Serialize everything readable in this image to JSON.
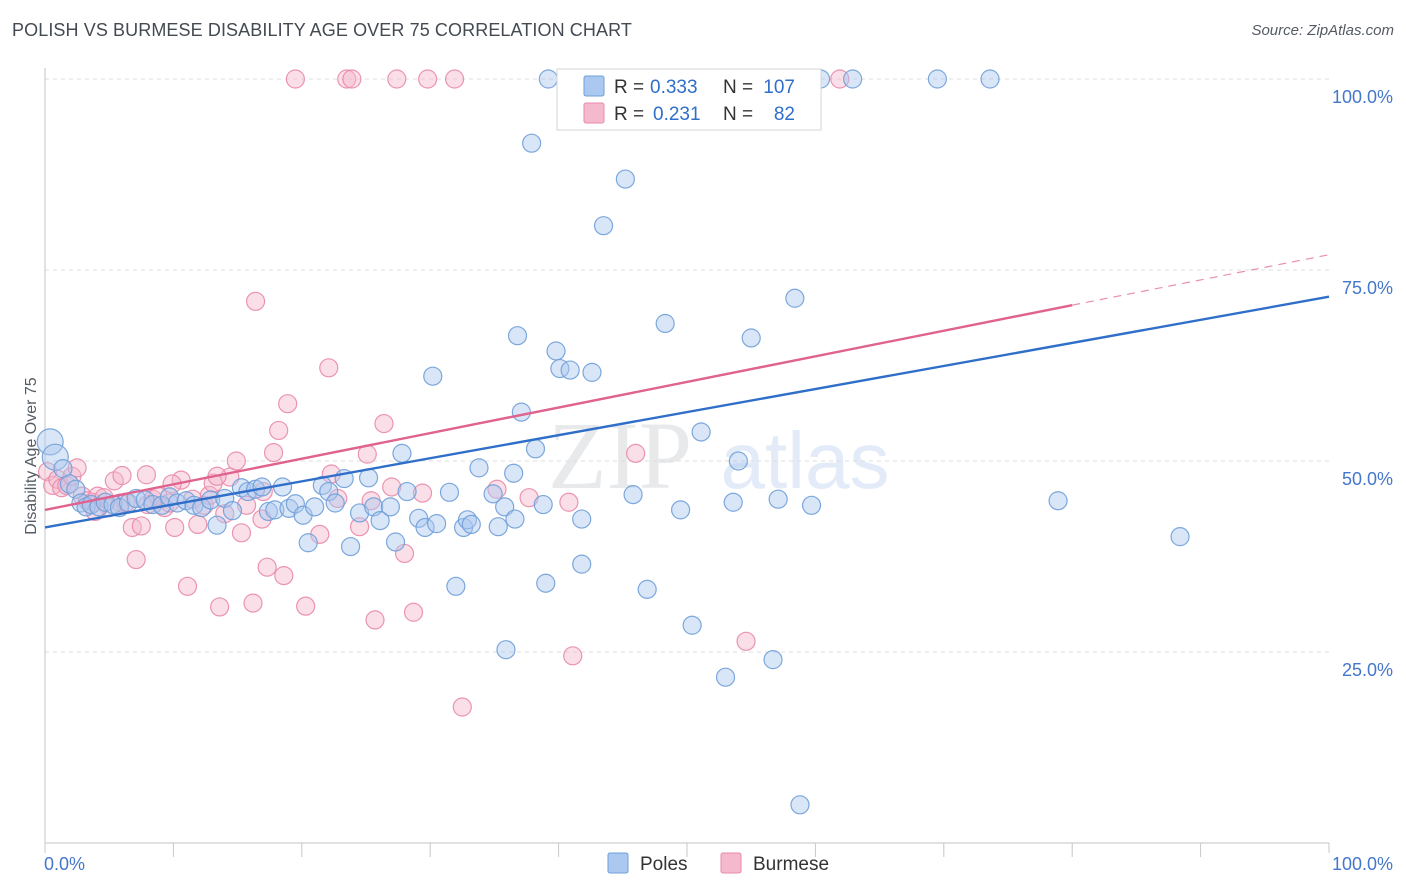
{
  "header": {
    "title": "POLISH VS BURMESE DISABILITY AGE OVER 75 CORRELATION CHART",
    "source": "Source: ZipAtlas.com"
  },
  "watermark": {
    "zip": "ZIP",
    "atlas": "atlas"
  },
  "legend_top": [
    {
      "r_label": "R =",
      "r_value": "0.333",
      "n_label": "N =",
      "n_value": "107"
    },
    {
      "r_label": "R =",
      "r_value": "0.231",
      "n_label": "N =",
      "n_value": "82"
    }
  ],
  "legend_bottom": [
    {
      "label": "Poles"
    },
    {
      "label": "Burmese"
    }
  ],
  "colors": {
    "poles_fill": "#aac8f0",
    "poles_stroke": "#6f9fd8",
    "poles_line": "#2f6fc9",
    "burmese_fill": "#f5b9cd",
    "burmese_stroke": "#e98aaa",
    "burmese_line": "#e0628e",
    "tick_label": "#4477cc",
    "grid": "#dddddd"
  },
  "chart_data": {
    "type": "scatter",
    "title": "POLISH VS BURMESE DISABILITY AGE OVER 75 CORRELATION CHART",
    "ylabel": "Disability Age Over 75",
    "xlabel": "",
    "xlim": [
      0,
      100
    ],
    "ylim": [
      0,
      100
    ],
    "x_tick_labels": [
      "0.0%",
      "100.0%"
    ],
    "y_ticks": [
      {
        "value": 25,
        "label": "25.0%"
      },
      {
        "value": 50,
        "label": "50.0%"
      },
      {
        "value": 75,
        "label": "75.0%"
      },
      {
        "value": 100,
        "label": "100.0%"
      }
    ],
    "grid": true,
    "legend_placement": "top-center",
    "series": [
      {
        "name": "Poles",
        "r": 0.333,
        "n": 107,
        "trend": {
          "x0": 0,
          "y0": 41.3,
          "x1": 100,
          "y1": 71.5
        },
        "points": [
          [
            0.4,
            52.5
          ],
          [
            0.8,
            50.5
          ],
          [
            1.4,
            49.0
          ],
          [
            1.9,
            47.0
          ],
          [
            2.4,
            46.3
          ],
          [
            2.8,
            44.5
          ],
          [
            3.2,
            44.0
          ],
          [
            3.6,
            44.3
          ],
          [
            4.2,
            44.0
          ],
          [
            4.7,
            44.6
          ],
          [
            5.3,
            44.3
          ],
          [
            5.8,
            43.9
          ],
          [
            6.5,
            44.5
          ],
          [
            7.1,
            45.1
          ],
          [
            7.8,
            44.9
          ],
          [
            8.4,
            44.3
          ],
          [
            9.1,
            44.2
          ],
          [
            9.7,
            45.3
          ],
          [
            10.3,
            44.5
          ],
          [
            11.0,
            44.8
          ],
          [
            11.6,
            44.2
          ],
          [
            12.2,
            43.9
          ],
          [
            12.9,
            44.9
          ],
          [
            13.4,
            41.6
          ],
          [
            14.0,
            45.1
          ],
          [
            14.6,
            43.5
          ],
          [
            15.3,
            46.5
          ],
          [
            15.8,
            46.0
          ],
          [
            16.4,
            46.3
          ],
          [
            16.9,
            46.6
          ],
          [
            17.4,
            43.4
          ],
          [
            17.9,
            43.6
          ],
          [
            18.5,
            46.6
          ],
          [
            19.0,
            43.8
          ],
          [
            19.5,
            44.4
          ],
          [
            20.1,
            42.9
          ],
          [
            20.5,
            39.3
          ],
          [
            21.0,
            44.0
          ],
          [
            21.6,
            46.8
          ],
          [
            22.1,
            46.0
          ],
          [
            22.6,
            44.5
          ],
          [
            23.3,
            47.7
          ],
          [
            23.8,
            38.8
          ],
          [
            24.5,
            43.2
          ],
          [
            25.2,
            47.8
          ],
          [
            25.6,
            44.0
          ],
          [
            26.1,
            42.2
          ],
          [
            26.9,
            44.0
          ],
          [
            27.3,
            39.4
          ],
          [
            27.8,
            51.0
          ],
          [
            28.2,
            46.0
          ],
          [
            29.1,
            42.5
          ],
          [
            29.6,
            41.3
          ],
          [
            30.2,
            61.1
          ],
          [
            30.5,
            41.8
          ],
          [
            31.5,
            45.9
          ],
          [
            32.0,
            33.6
          ],
          [
            32.6,
            41.3
          ],
          [
            32.9,
            42.3
          ],
          [
            33.2,
            41.7
          ],
          [
            33.8,
            49.1
          ],
          [
            34.9,
            45.7
          ],
          [
            35.3,
            41.4
          ],
          [
            35.8,
            44.0
          ],
          [
            35.9,
            25.3
          ],
          [
            36.5,
            48.4
          ],
          [
            36.6,
            42.4
          ],
          [
            36.8,
            66.4
          ],
          [
            37.1,
            56.4
          ],
          [
            37.9,
            91.6
          ],
          [
            38.2,
            51.6
          ],
          [
            38.8,
            44.3
          ],
          [
            39.0,
            34.0
          ],
          [
            39.2,
            100.0
          ],
          [
            39.8,
            64.4
          ],
          [
            40.1,
            62.1
          ],
          [
            40.9,
            61.9
          ],
          [
            41.2,
            100.0
          ],
          [
            41.8,
            42.4
          ],
          [
            41.8,
            36.5
          ],
          [
            42.6,
            61.6
          ],
          [
            43.5,
            80.8
          ],
          [
            44.7,
            100.0
          ],
          [
            45.2,
            86.9
          ],
          [
            45.8,
            45.6
          ],
          [
            46.4,
            100.0
          ],
          [
            46.9,
            33.2
          ],
          [
            48.3,
            68.0
          ],
          [
            49.5,
            43.6
          ],
          [
            50.4,
            28.5
          ],
          [
            51.1,
            53.8
          ],
          [
            51.3,
            100.0
          ],
          [
            53.0,
            21.7
          ],
          [
            53.6,
            44.6
          ],
          [
            54.0,
            50.0
          ],
          [
            55.0,
            66.1
          ],
          [
            56.7,
            24.0
          ],
          [
            58.4,
            71.3
          ],
          [
            58.8,
            5.0
          ],
          [
            60.4,
            100.0
          ],
          [
            62.9,
            100.0
          ],
          [
            69.5,
            100.0
          ],
          [
            73.6,
            100.0
          ],
          [
            78.9,
            44.8
          ],
          [
            88.4,
            40.1
          ],
          [
            57.1,
            45.0
          ],
          [
            59.7,
            44.2
          ]
        ]
      },
      {
        "name": "Burmese",
        "r": 0.231,
        "n": 82,
        "trend": {
          "x0": 0,
          "y0": 43.6,
          "x1": 80,
          "y1": 70.4,
          "dash_to_x": 100,
          "dash_to_y": 77.0
        },
        "points": [
          [
            0.2,
            48.6
          ],
          [
            0.6,
            46.8
          ],
          [
            1.0,
            47.6
          ],
          [
            1.3,
            46.5
          ],
          [
            1.7,
            46.8
          ],
          [
            2.1,
            48.0
          ],
          [
            2.5,
            49.1
          ],
          [
            2.9,
            45.4
          ],
          [
            3.3,
            44.8
          ],
          [
            3.7,
            44.6
          ],
          [
            4.1,
            45.4
          ],
          [
            4.6,
            45.2
          ],
          [
            5.0,
            43.9
          ],
          [
            5.4,
            47.4
          ],
          [
            5.9,
            44.5
          ],
          [
            6.3,
            44.6
          ],
          [
            6.8,
            41.3
          ],
          [
            7.1,
            37.1
          ],
          [
            7.5,
            41.5
          ],
          [
            8.0,
            44.3
          ],
          [
            8.4,
            45.0
          ],
          [
            8.8,
            45.4
          ],
          [
            9.3,
            43.9
          ],
          [
            9.7,
            44.5
          ],
          [
            10.1,
            41.3
          ],
          [
            10.6,
            47.5
          ],
          [
            11.1,
            33.6
          ],
          [
            11.5,
            45.0
          ],
          [
            11.9,
            41.7
          ],
          [
            12.4,
            44.2
          ],
          [
            12.8,
            45.5
          ],
          [
            13.1,
            47.1
          ],
          [
            13.6,
            30.9
          ],
          [
            14.0,
            43.1
          ],
          [
            14.4,
            47.9
          ],
          [
            14.9,
            50.0
          ],
          [
            15.3,
            40.6
          ],
          [
            15.7,
            44.2
          ],
          [
            16.2,
            31.4
          ],
          [
            16.4,
            70.9
          ],
          [
            16.9,
            42.4
          ],
          [
            17.3,
            36.1
          ],
          [
            17.8,
            51.1
          ],
          [
            18.2,
            54.0
          ],
          [
            18.6,
            35.0
          ],
          [
            18.9,
            57.5
          ],
          [
            19.5,
            100.0
          ],
          [
            20.3,
            31.0
          ],
          [
            21.4,
            40.4
          ],
          [
            22.1,
            62.2
          ],
          [
            22.3,
            48.3
          ],
          [
            22.8,
            45.1
          ],
          [
            23.5,
            100.0
          ],
          [
            23.9,
            100.0
          ],
          [
            24.5,
            41.4
          ],
          [
            25.1,
            50.9
          ],
          [
            25.4,
            44.8
          ],
          [
            25.7,
            29.2
          ],
          [
            26.4,
            54.9
          ],
          [
            27.0,
            46.6
          ],
          [
            27.4,
            100.0
          ],
          [
            28.0,
            37.9
          ],
          [
            28.7,
            30.2
          ],
          [
            29.4,
            45.8
          ],
          [
            29.8,
            100.0
          ],
          [
            31.9,
            100.0
          ],
          [
            32.5,
            17.8
          ],
          [
            35.2,
            46.3
          ],
          [
            37.7,
            45.2
          ],
          [
            40.8,
            44.6
          ],
          [
            41.1,
            24.5
          ],
          [
            44.3,
            100.0
          ],
          [
            46.0,
            51.0
          ],
          [
            50.2,
            100.0
          ],
          [
            54.6,
            26.4
          ],
          [
            61.9,
            100.0
          ],
          [
            17.0,
            46.0
          ],
          [
            13.4,
            48.0
          ],
          [
            9.9,
            47.0
          ],
          [
            7.9,
            48.2
          ],
          [
            3.9,
            43.4
          ],
          [
            6.0,
            48.1
          ]
        ]
      }
    ]
  }
}
